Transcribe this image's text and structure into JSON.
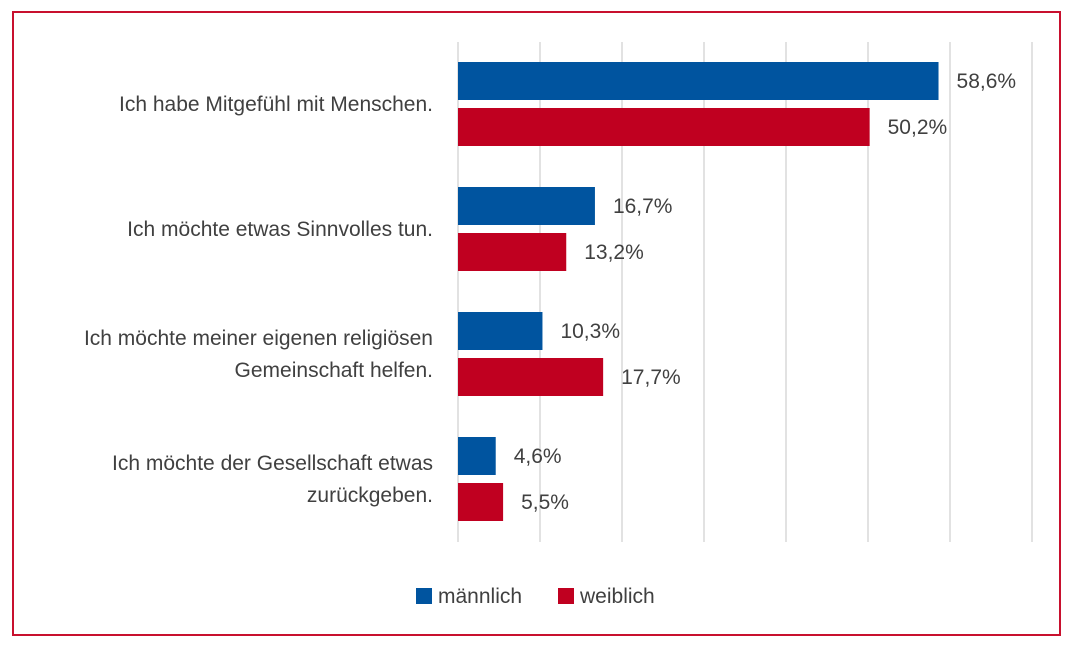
{
  "chart_data": {
    "type": "bar",
    "orientation": "horizontal",
    "categories": [
      [
        "Ich habe Mitgefühl mit Menschen."
      ],
      [
        "Ich möchte etwas Sinnvolles tun."
      ],
      [
        "Ich möchte meiner eigenen religiösen",
        "Gemeinschaft helfen."
      ],
      [
        "Ich möchte der Gesellschaft etwas",
        "zurückgeben."
      ]
    ],
    "series": [
      {
        "name": "männlich",
        "color": "#00549f",
        "values": [
          58.6,
          16.7,
          10.3,
          4.6
        ],
        "labels": [
          "58,6%",
          "16,7%",
          "10,3%",
          "4,6%"
        ]
      },
      {
        "name": "weiblich",
        "color": "#c00020",
        "values": [
          50.2,
          13.2,
          17.7,
          5.5
        ],
        "labels": [
          "50,2%",
          "13,2%",
          "17,7%",
          "5,5%"
        ]
      }
    ],
    "xlim": [
      0,
      70
    ],
    "grid": true,
    "legend": "bottom",
    "frame_color": "#c8102e"
  }
}
